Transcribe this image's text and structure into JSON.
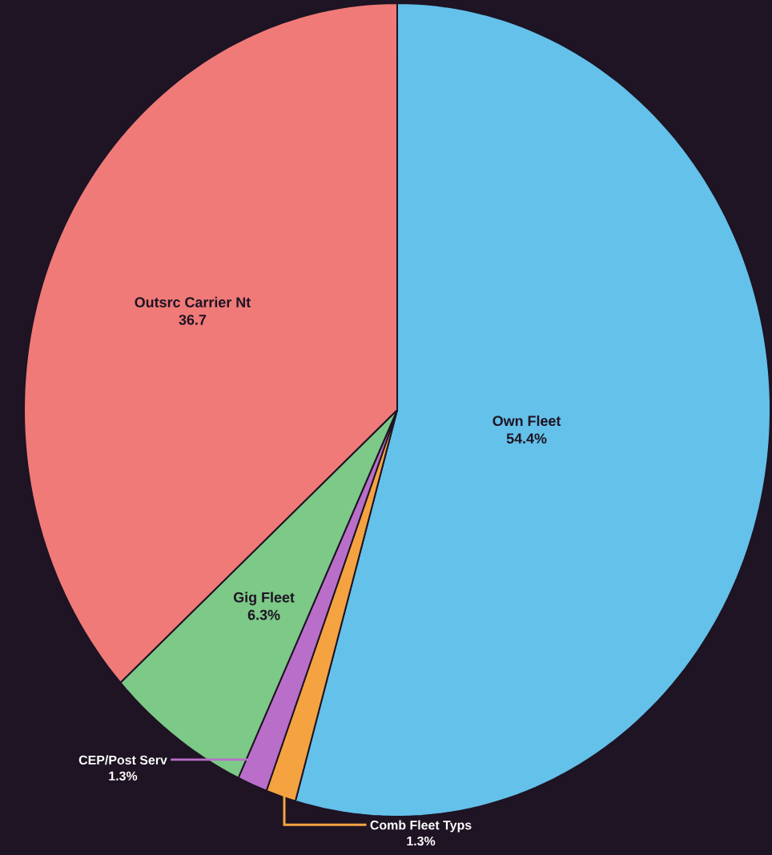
{
  "chart_data": {
    "type": "pie",
    "categories": [
      "Own Fleet",
      "Comb Fleet Typs",
      "CEP/Post Serv",
      "Gig Fleet",
      "Outsrc Carrier Nt"
    ],
    "values": [
      54.4,
      1.3,
      1.3,
      6.3,
      36.7
    ],
    "value_labels": [
      "54.4%",
      "1.3%",
      "1.3%",
      "6.3%",
      "36.7"
    ],
    "colors": [
      "#64c1ea",
      "#f5a340",
      "#b96fc9",
      "#7dc987",
      "#f07a78"
    ],
    "legend": false
  }
}
